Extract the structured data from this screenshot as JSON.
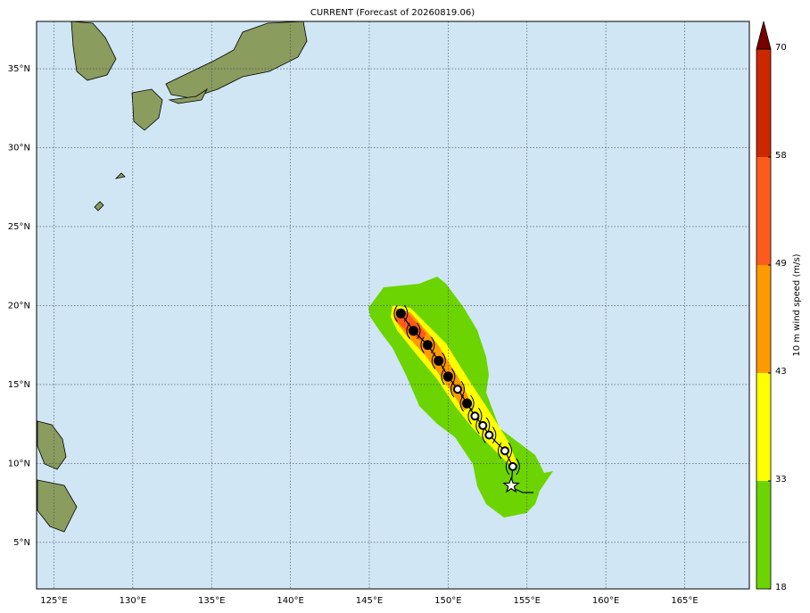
{
  "map": {
    "title": "CURRENT (Forecast of 20260819.06)",
    "lon_range": [
      123.9,
      169.1
    ],
    "lat_range": [
      2.05,
      38.0
    ],
    "lon_ticks": [
      {
        "value": 125,
        "label": "125°E"
      },
      {
        "value": 130,
        "label": "130°E"
      },
      {
        "value": 135,
        "label": "135°E"
      },
      {
        "value": 140,
        "label": "140°E"
      },
      {
        "value": 145,
        "label": "145°E"
      },
      {
        "value": 150,
        "label": "150°E"
      },
      {
        "value": 155,
        "label": "155°E"
      },
      {
        "value": 160,
        "label": "160°E"
      },
      {
        "value": 165,
        "label": "165°E"
      }
    ],
    "lat_ticks": [
      {
        "value": 5,
        "label": "5°N"
      },
      {
        "value": 10,
        "label": "10°N"
      },
      {
        "value": 15,
        "label": "15°N"
      },
      {
        "value": 20,
        "label": "20°N"
      },
      {
        "value": 25,
        "label": "25°N"
      },
      {
        "value": 30,
        "label": "30°N"
      },
      {
        "value": 35,
        "label": "35°N"
      }
    ],
    "colorbar": {
      "title": "10 m wind speed (m/s)",
      "levels": [
        18,
        33,
        43,
        49,
        58,
        70
      ],
      "colors": [
        "#6cd400",
        "#ffff00",
        "#ff9900",
        "#ff5a1e",
        "#cc2800"
      ],
      "extend_color": "#7a0000"
    },
    "track": {
      "lon": [
        154.0,
        154.1,
        153.6,
        152.6,
        152.2,
        151.7,
        151.2,
        150.6,
        150.0,
        149.4,
        148.7,
        147.8,
        147.0
      ],
      "lat": [
        8.6,
        9.8,
        10.8,
        11.8,
        12.4,
        13.0,
        13.8,
        14.7,
        15.5,
        16.5,
        17.5,
        18.4,
        19.5
      ],
      "filled": [
        false,
        false,
        false,
        false,
        false,
        false,
        true,
        false,
        true,
        true,
        true,
        true,
        true
      ]
    }
  }
}
